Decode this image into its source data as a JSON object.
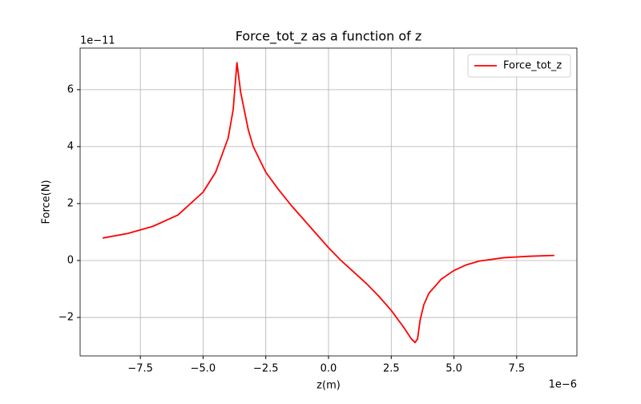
{
  "chart_data": {
    "type": "line",
    "title": "Force_tot_z as a function of z",
    "x_label": "z(m)",
    "y_label": "Force(N)",
    "x_offset_label": "1e−6",
    "y_offset_label": "1e−11",
    "x": [
      -9,
      -8,
      -7,
      -6,
      -5,
      -4.5,
      -4,
      -3.8,
      -3.65,
      -3.5,
      -3.2,
      -3,
      -2.5,
      -2,
      -1.5,
      -1,
      -0.5,
      0,
      0.5,
      1,
      1.5,
      2,
      2.5,
      3,
      3.3,
      3.45,
      3.55,
      3.65,
      3.8,
      4,
      4.5,
      5,
      5.5,
      6,
      7,
      8,
      9
    ],
    "series": [
      {
        "name": "Force_tot_z",
        "color": "#ff0000",
        "values": [
          0.79,
          0.95,
          1.2,
          1.6,
          2.4,
          3.1,
          4.3,
          5.3,
          6.95,
          5.9,
          4.6,
          4.0,
          3.1,
          2.5,
          1.95,
          1.45,
          0.95,
          0.45,
          0,
          -0.4,
          -0.8,
          -1.25,
          -1.75,
          -2.35,
          -2.75,
          -2.88,
          -2.75,
          -2.1,
          -1.55,
          -1.15,
          -0.65,
          -0.35,
          -0.15,
          -0.02,
          0.1,
          0.15,
          0.18
        ]
      }
    ],
    "xlim": [
      -9.9,
      9.9
    ],
    "xticks": [
      {
        "value": -7.5,
        "label": "−7.5"
      },
      {
        "value": -5,
        "label": "−5.0"
      },
      {
        "value": -2.5,
        "label": "−2.5"
      },
      {
        "value": 0,
        "label": "0.0"
      },
      2.5,
      {
        "value": 5,
        "label": "5.0"
      },
      7.5
    ],
    "ylim": [
      -3.35,
      7.46
    ],
    "yticks": [
      {
        "value": -2,
        "label": "−2"
      },
      0,
      2,
      4,
      6
    ],
    "grid": true,
    "legend": "upper right"
  }
}
